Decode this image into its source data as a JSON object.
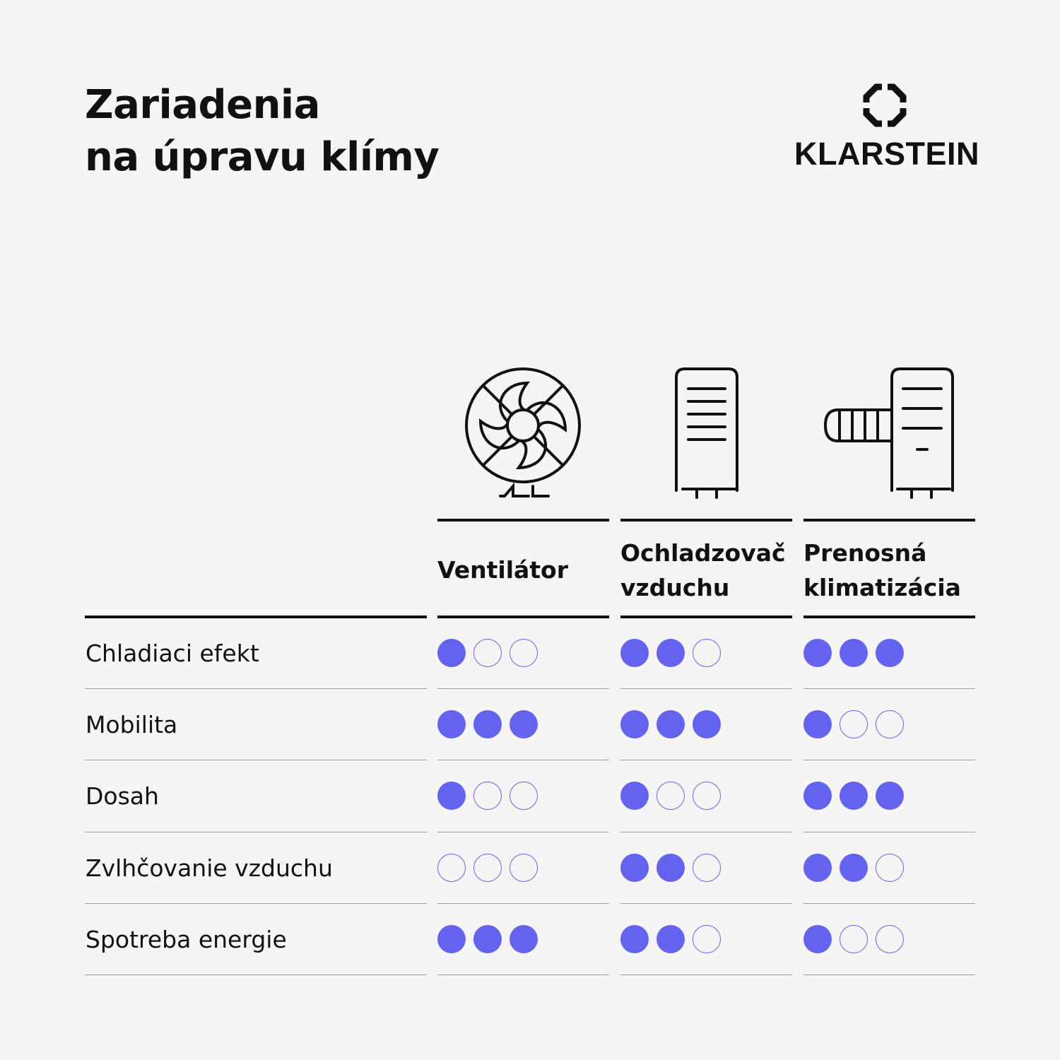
{
  "title": {
    "line1": "Zariadenia",
    "line2": "na úpravu klímy"
  },
  "logo": {
    "brand": "KLARSTEIN",
    "icon": "klarstein-octagon-logo"
  },
  "accent_color": "#6363f0",
  "scale_max": 3,
  "columns": [
    {
      "icon": "fan-icon",
      "label_line1": "Ventilátor",
      "label_line2": ""
    },
    {
      "icon": "air-cooler-icon",
      "label_line1": "Ochladzovač",
      "label_line2": "vzduchu"
    },
    {
      "icon": "portable-air-conditioner-icon",
      "label_line1": "Prenosná",
      "label_line2": "klimatizácia"
    }
  ],
  "rows": [
    {
      "label": "Chladiaci efekt",
      "ratings": [
        1,
        2,
        3
      ]
    },
    {
      "label": "Mobilita",
      "ratings": [
        3,
        3,
        1
      ]
    },
    {
      "label": "Dosah",
      "ratings": [
        1,
        1,
        3
      ]
    },
    {
      "label": "Zvlhčovanie vzduchu",
      "ratings": [
        0,
        2,
        2
      ]
    },
    {
      "label": "Spotreba energie",
      "ratings": [
        3,
        2,
        1
      ]
    }
  ]
}
